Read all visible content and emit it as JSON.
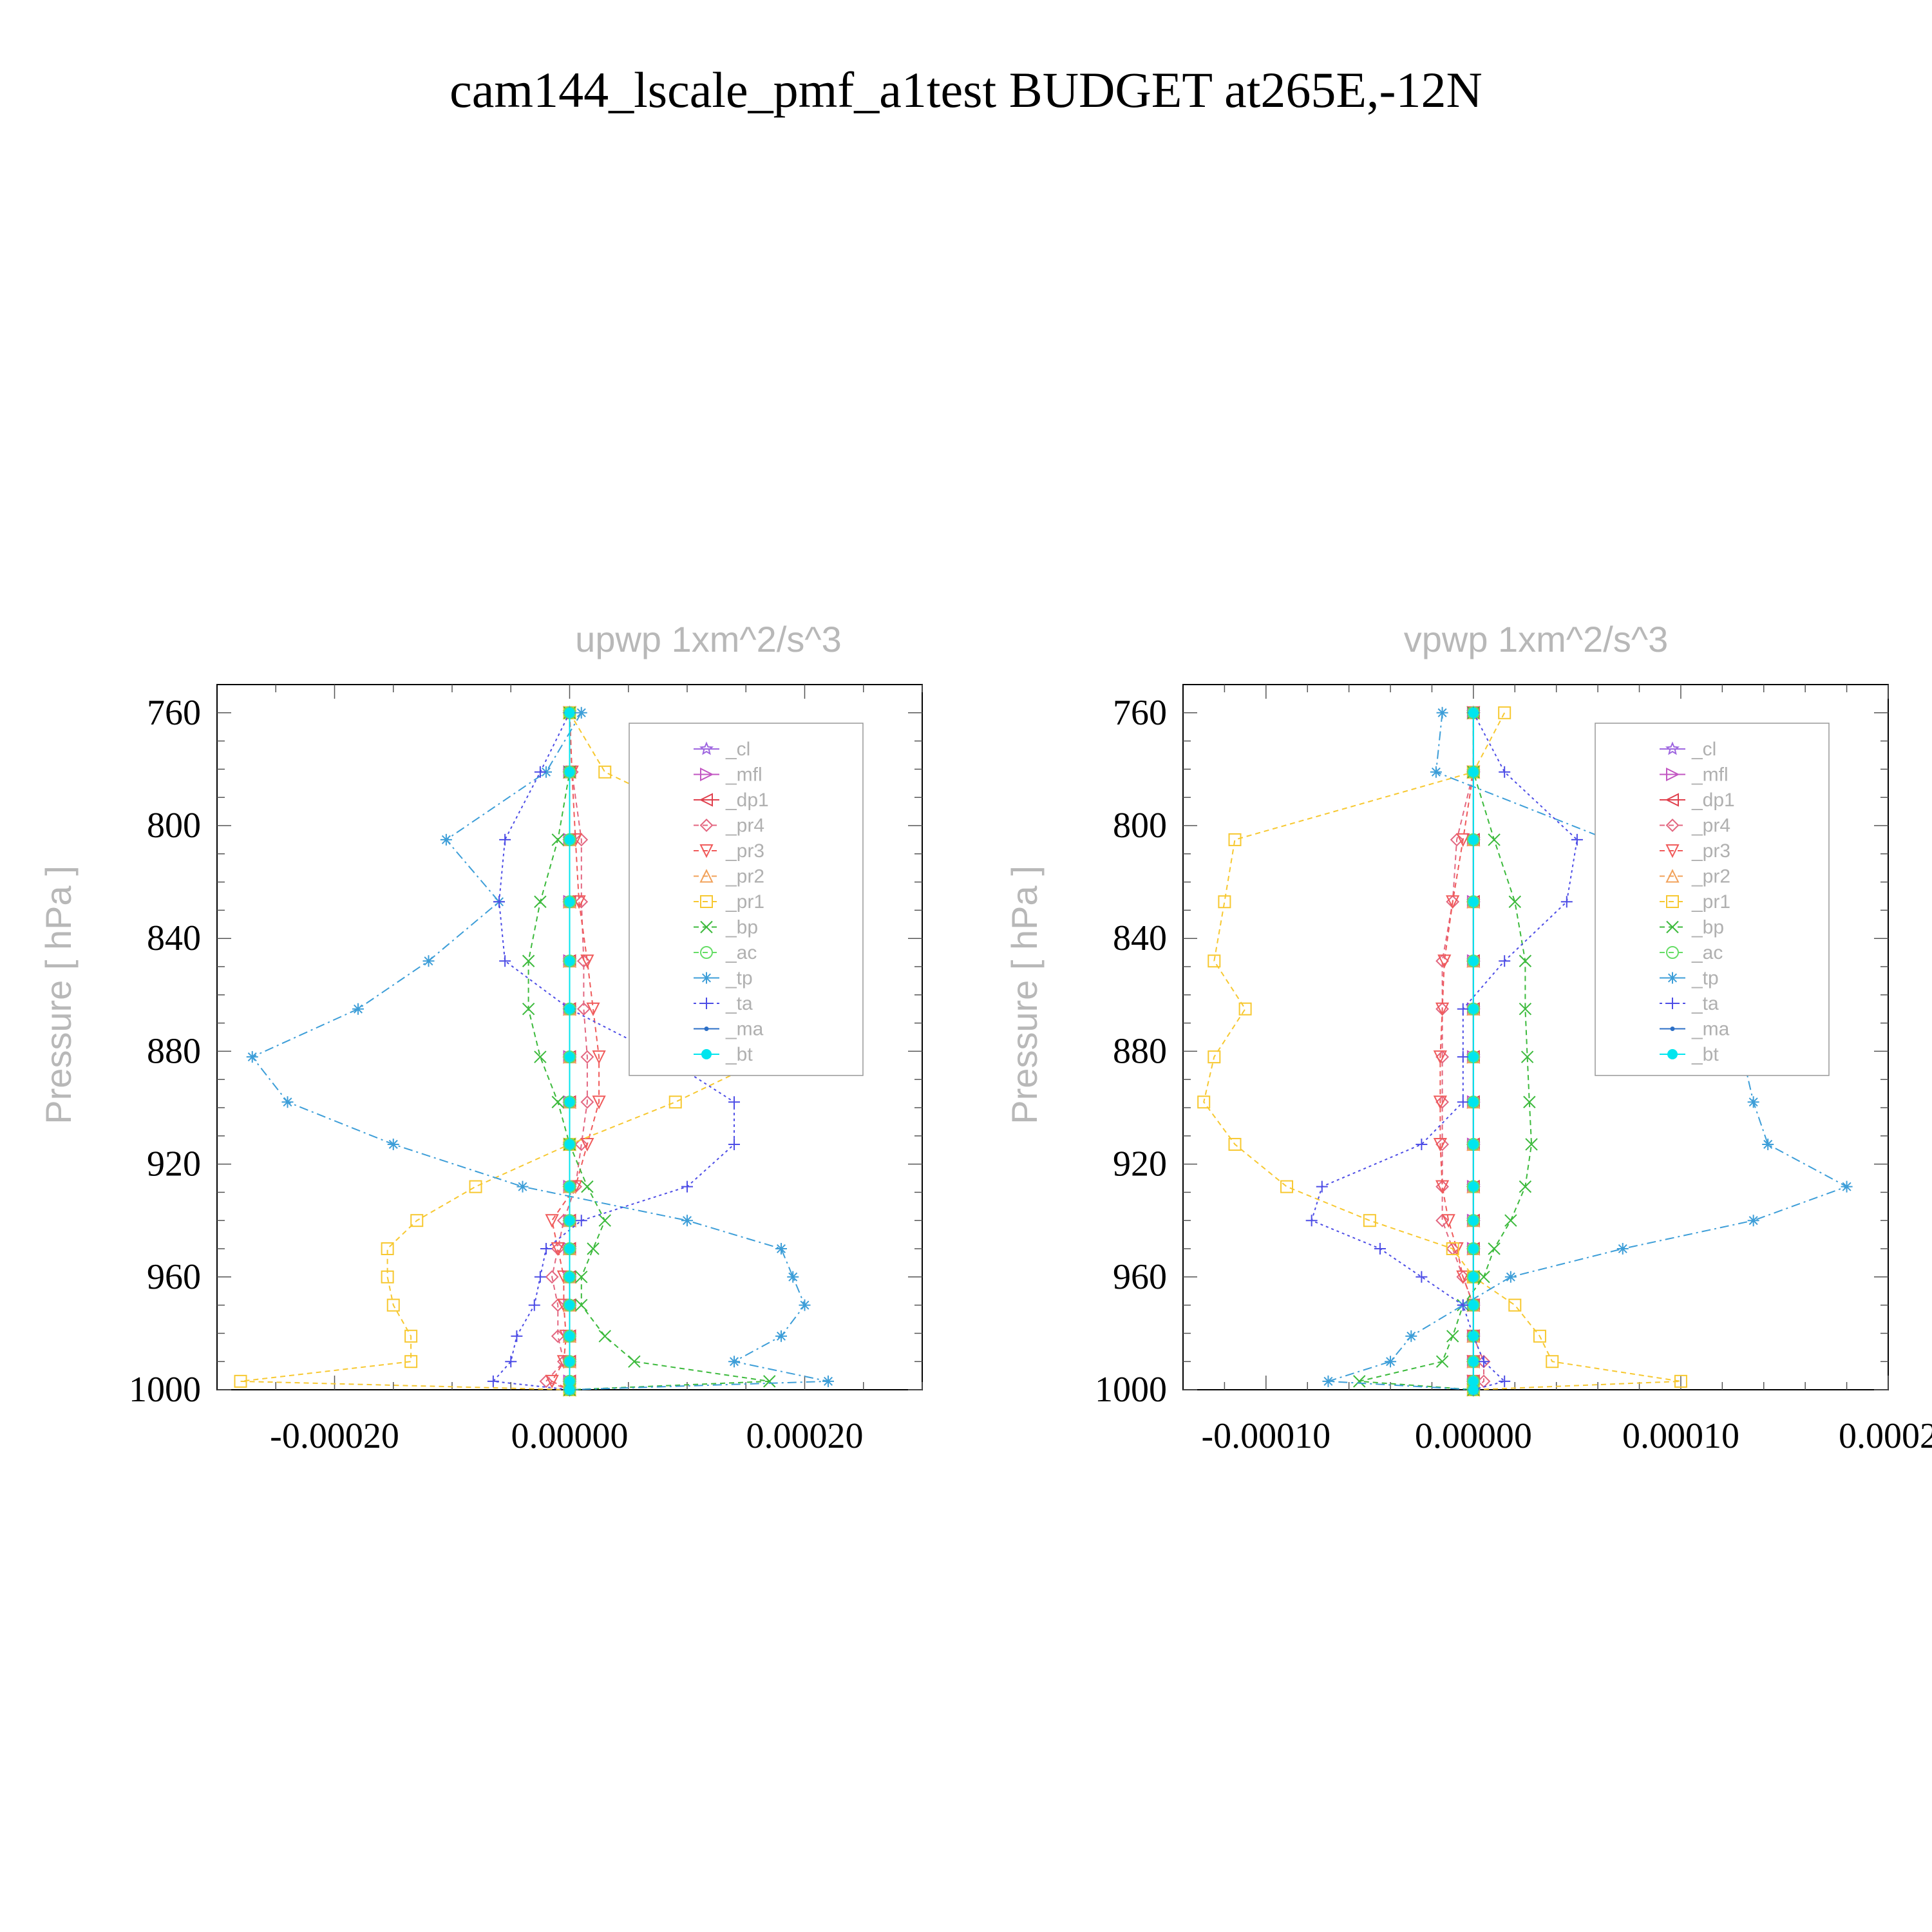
{
  "figure": {
    "title": "cam144_lscale_pmf_a1test  BUDGET at265E,-12N"
  },
  "chart_data": [
    {
      "type": "line",
      "title": "upwp   1xm^2/s^3",
      "ylabel": "Pressure  [ hPa ]",
      "xlabel": "",
      "xlim": [
        -0.0003,
        0.0003
      ],
      "ylim": [
        1000,
        750
      ],
      "y_inverted": true,
      "xticks": [
        -0.0002,
        0.0,
        0.0002
      ],
      "xtick_labels": [
        "-0.00020",
        "0.00000",
        "0.00020"
      ],
      "yticks": [
        760,
        800,
        840,
        880,
        920,
        960,
        1000
      ],
      "ytick_labels": [
        "760",
        "800",
        "840",
        "880",
        "920",
        "960",
        "1000"
      ],
      "legend_position": "top-right",
      "y": [
        760,
        781,
        805,
        827,
        848,
        865,
        882,
        898,
        913,
        928,
        940,
        950,
        960,
        970,
        981,
        990,
        997,
        1000
      ],
      "series": [
        {
          "name": "_cl",
          "color": "#9e66e0",
          "dash": "",
          "marker": "star",
          "values": [
            0,
            0,
            0,
            0,
            0,
            0,
            0,
            0,
            0,
            0,
            0,
            0,
            0,
            0,
            0,
            0,
            0,
            0
          ]
        },
        {
          "name": "_mfl",
          "color": "#c255c2",
          "dash": "",
          "marker": "tri-right",
          "values": [
            0,
            0,
            0,
            0,
            0,
            0,
            0,
            0,
            0,
            0,
            0,
            0,
            0,
            0,
            0,
            0,
            0,
            0
          ]
        },
        {
          "name": "_dp1",
          "color": "#e0404d",
          "dash": "",
          "marker": "tri-left",
          "values": [
            0,
            0,
            0,
            0,
            0,
            0,
            0,
            0,
            0,
            0,
            0,
            0,
            0,
            0,
            0,
            0,
            0,
            0
          ]
        },
        {
          "name": "_pr4",
          "color": "#e36680",
          "dash": "8 6",
          "marker": "diamond",
          "values": [
            0,
            2e-06,
            1e-05,
            1e-05,
            1.2e-05,
            1.2e-05,
            1.5e-05,
            1.5e-05,
            1e-05,
            5e-06,
            -5e-06,
            -1e-05,
            -1.5e-05,
            -1e-05,
            -1e-05,
            -5e-06,
            -2e-05,
            0
          ]
        },
        {
          "name": "_pr3",
          "color": "#f05a5a",
          "dash": "8 6",
          "marker": "tri-down",
          "values": [
            0,
            2e-06,
            5e-06,
            8e-06,
            1.5e-05,
            2e-05,
            2.5e-05,
            2.5e-05,
            1.5e-05,
            5e-06,
            -1.5e-05,
            -1e-05,
            -5e-06,
            -5e-06,
            -3e-06,
            -5e-06,
            -1.5e-05,
            0
          ]
        },
        {
          "name": "_pr2",
          "color": "#f2a25a",
          "dash": "8 6",
          "marker": "tri-up",
          "values": [
            0,
            0,
            0,
            0,
            0,
            0,
            0,
            0,
            0,
            0,
            0,
            0,
            0,
            0,
            0,
            0,
            0,
            0
          ]
        },
        {
          "name": "_pr1",
          "color": "#f7c830",
          "dash": "8 6",
          "marker": "square",
          "values": [
            0,
            3e-05,
            0.00015,
            0.00014,
            0.00018,
            0.00017,
            0.00017,
            9e-05,
            0,
            -8e-05,
            -0.00013,
            -0.000155,
            -0.000155,
            -0.00015,
            -0.000135,
            -0.000135,
            -0.00028,
            0
          ]
        },
        {
          "name": "_bp",
          "color": "#3cba3c",
          "dash": "8 6",
          "marker": "x",
          "values": [
            0,
            0,
            -1e-05,
            -2.5e-05,
            -3.5e-05,
            -3.5e-05,
            -2.5e-05,
            -1e-05,
            0,
            1.5e-05,
            3e-05,
            2e-05,
            1e-05,
            1e-05,
            3e-05,
            5.5e-05,
            0.00017,
            0
          ]
        },
        {
          "name": "_ac",
          "color": "#66dd66",
          "dash": "8 6",
          "marker": "circle",
          "values": [
            0,
            0,
            0,
            0,
            0,
            0,
            0,
            0,
            0,
            0,
            0,
            0,
            0,
            0,
            0,
            0,
            0,
            0
          ]
        },
        {
          "name": "_tp",
          "color": "#3d9ed8",
          "dash": "14 6 3 6",
          "marker": "asterisk",
          "values": [
            1e-05,
            -2e-05,
            -0.000105,
            -6e-05,
            -0.00012,
            -0.00018,
            -0.00027,
            -0.00024,
            -0.00015,
            -4e-05,
            0.0001,
            0.00018,
            0.00019,
            0.0002,
            0.00018,
            0.00014,
            0.00022,
            0
          ]
        },
        {
          "name": "_ta",
          "color": "#4d4de6",
          "dash": "4 5",
          "marker": "plus",
          "values": [
            0,
            -2.5e-05,
            -5.5e-05,
            -6e-05,
            -5.5e-05,
            0,
            8e-05,
            0.00014,
            0.00014,
            0.0001,
            1e-05,
            -2e-05,
            -2.5e-05,
            -3e-05,
            -4.5e-05,
            -5e-05,
            -6.5e-05,
            0
          ]
        },
        {
          "name": "_ma",
          "color": "#2c6fc7",
          "dash": "",
          "marker": "dot",
          "values": [
            0,
            0,
            0,
            0,
            0,
            0,
            0,
            0,
            0,
            0,
            0,
            0,
            0,
            0,
            0,
            0,
            0,
            0
          ]
        },
        {
          "name": "_bt",
          "color": "#00e5ee",
          "dash": "",
          "marker": "bigdot",
          "values": [
            0,
            0,
            0,
            0,
            0,
            0,
            0,
            0,
            0,
            0,
            0,
            0,
            0,
            0,
            0,
            0,
            0,
            0
          ]
        }
      ]
    },
    {
      "type": "line",
      "title": "vpwp   1xm^2/s^3",
      "ylabel": "Pressure  [ hPa ]",
      "xlabel": "",
      "xlim": [
        -0.00014,
        0.0002
      ],
      "ylim": [
        1000,
        750
      ],
      "y_inverted": true,
      "xticks": [
        -0.0001,
        0.0,
        0.0001,
        0.0002
      ],
      "xtick_labels": [
        "-0.00010",
        "0.00000",
        "0.00010",
        "0.0002"
      ],
      "yticks": [
        760,
        800,
        840,
        880,
        920,
        960,
        1000
      ],
      "ytick_labels": [
        "760",
        "800",
        "840",
        "880",
        "920",
        "960",
        "1000"
      ],
      "legend_position": "top-right",
      "y": [
        760,
        781,
        805,
        827,
        848,
        865,
        882,
        898,
        913,
        928,
        940,
        950,
        960,
        970,
        981,
        990,
        997,
        1000
      ],
      "series": [
        {
          "name": "_cl",
          "color": "#9e66e0",
          "dash": "",
          "marker": "star",
          "values": [
            0,
            0,
            0,
            0,
            0,
            0,
            0,
            0,
            0,
            0,
            0,
            0,
            0,
            0,
            0,
            0,
            0,
            0
          ]
        },
        {
          "name": "_mfl",
          "color": "#c255c2",
          "dash": "",
          "marker": "tri-right",
          "values": [
            0,
            0,
            0,
            0,
            0,
            0,
            0,
            0,
            0,
            0,
            0,
            0,
            0,
            0,
            0,
            0,
            0,
            0
          ]
        },
        {
          "name": "_dp1",
          "color": "#e0404d",
          "dash": "",
          "marker": "tri-left",
          "values": [
            0,
            0,
            0,
            0,
            0,
            0,
            0,
            0,
            0,
            0,
            0,
            0,
            0,
            0,
            0,
            0,
            0,
            0
          ]
        },
        {
          "name": "_pr4",
          "color": "#e36680",
          "dash": "8 6",
          "marker": "diamond",
          "values": [
            0,
            0,
            -8e-06,
            -1e-05,
            -1.5e-05,
            -1.5e-05,
            -1.5e-05,
            -1.5e-05,
            -1.5e-05,
            -1.5e-05,
            -1.5e-05,
            -1e-05,
            -5e-06,
            0,
            0,
            5e-06,
            5e-06,
            0
          ]
        },
        {
          "name": "_pr3",
          "color": "#f05a5a",
          "dash": "8 6",
          "marker": "tri-down",
          "values": [
            0,
            0,
            -5e-06,
            -1e-05,
            -1.4e-05,
            -1.5e-05,
            -1.6e-05,
            -1.6e-05,
            -1.6e-05,
            -1.5e-05,
            -1.2e-05,
            -8e-06,
            -5e-06,
            0,
            0,
            0,
            0,
            0
          ]
        },
        {
          "name": "_pr2",
          "color": "#f2a25a",
          "dash": "8 6",
          "marker": "tri-up",
          "values": [
            0,
            0,
            0,
            0,
            0,
            0,
            0,
            0,
            0,
            0,
            0,
            0,
            0,
            0,
            0,
            0,
            0,
            0
          ]
        },
        {
          "name": "_pr1",
          "color": "#f7c830",
          "dash": "8 6",
          "marker": "square",
          "values": [
            1.5e-05,
            0,
            -0.000115,
            -0.00012,
            -0.000125,
            -0.00011,
            -0.000125,
            -0.00013,
            -0.000115,
            -9e-05,
            -5e-05,
            -1e-05,
            0,
            2e-05,
            3.2e-05,
            3.8e-05,
            0.0001,
            0
          ]
        },
        {
          "name": "_bp",
          "color": "#3cba3c",
          "dash": "8 6",
          "marker": "x",
          "values": [
            0,
            0,
            1e-05,
            2e-05,
            2.5e-05,
            2.5e-05,
            2.6e-05,
            2.7e-05,
            2.8e-05,
            2.5e-05,
            1.8e-05,
            1e-05,
            5e-06,
            -5e-06,
            -1e-05,
            -1.5e-05,
            -5.5e-05,
            0
          ]
        },
        {
          "name": "_ac",
          "color": "#66dd66",
          "dash": "8 6",
          "marker": "circle",
          "values": [
            0,
            0,
            0,
            0,
            0,
            0,
            0,
            0,
            0,
            0,
            0,
            0,
            0,
            0,
            0,
            0,
            0,
            0
          ]
        },
        {
          "name": "_tp",
          "color": "#3d9ed8",
          "dash": "14 6 3 6",
          "marker": "asterisk",
          "values": [
            -1.5e-05,
            -1.8e-05,
            6.5e-05,
            7e-05,
            0.0001,
            0.000128,
            0.00013,
            0.000135,
            0.000142,
            0.00018,
            0.000135,
            7.2e-05,
            1.8e-05,
            -5e-06,
            -3e-05,
            -4e-05,
            -7e-05,
            0
          ]
        },
        {
          "name": "_ta",
          "color": "#4d4de6",
          "dash": "4 5",
          "marker": "plus",
          "values": [
            0,
            1.5e-05,
            5e-05,
            4.5e-05,
            1.5e-05,
            -5e-06,
            -5e-06,
            -5e-06,
            -2.5e-05,
            -7.3e-05,
            -7.8e-05,
            -4.5e-05,
            -2.5e-05,
            -5e-06,
            0,
            5e-06,
            1.5e-05,
            0
          ]
        },
        {
          "name": "_ma",
          "color": "#2c6fc7",
          "dash": "",
          "marker": "dot",
          "values": [
            0,
            0,
            0,
            0,
            0,
            0,
            0,
            0,
            0,
            0,
            0,
            0,
            0,
            0,
            0,
            0,
            0,
            0
          ]
        },
        {
          "name": "_bt",
          "color": "#00e5ee",
          "dash": "",
          "marker": "bigdot",
          "values": [
            0,
            0,
            0,
            0,
            0,
            0,
            0,
            0,
            0,
            0,
            0,
            0,
            0,
            0,
            0,
            0,
            0,
            0
          ]
        }
      ]
    }
  ]
}
